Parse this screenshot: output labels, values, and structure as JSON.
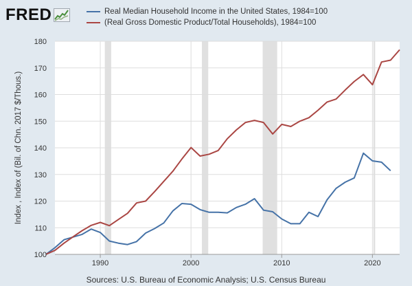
{
  "header": {
    "logo_text": "FRED"
  },
  "footer": {
    "sources": "Sources: U.S. Bureau of Economic Analysis; U.S. Census Bureau"
  },
  "colors": {
    "background": "#e1e9f0",
    "plot_background": "#ffffff",
    "recession": "#e0e0e0",
    "grid": "#dddddd"
  },
  "chart_data": {
    "type": "line",
    "title": "",
    "xlabel": "",
    "ylabel": "Index , Index of (Bil. of Chn. 2017 $/Thous.)",
    "xlim": [
      1985,
      2023
    ],
    "ylim": [
      100,
      180
    ],
    "x_ticks": [
      1990,
      2000,
      2010,
      2020
    ],
    "y_ticks": [
      100,
      110,
      120,
      130,
      140,
      150,
      160,
      170,
      180
    ],
    "grid": true,
    "legend_position": "top",
    "recessions": [
      [
        1990.5,
        1991.2
      ],
      [
        2001.2,
        2001.9
      ],
      [
        2007.9,
        2009.5
      ],
      [
        2020.1,
        2020.3
      ]
    ],
    "series": [
      {
        "name": "Real Median Household Income in the United States, 1984=100",
        "color": "#4572a7",
        "x": [
          1984,
          1985,
          1986,
          1987,
          1988,
          1989,
          1990,
          1991,
          1992,
          1993,
          1994,
          1995,
          1996,
          1997,
          1998,
          1999,
          2000,
          2001,
          2002,
          2003,
          2004,
          2005,
          2006,
          2007,
          2008,
          2009,
          2010,
          2011,
          2012,
          2013,
          2014,
          2015,
          2016,
          2017,
          2018,
          2019,
          2020,
          2021,
          2022
        ],
        "y": [
          100.0,
          102.5,
          105.5,
          106.5,
          107.5,
          109.5,
          108.2,
          105.0,
          104.2,
          103.7,
          104.8,
          108.0,
          109.7,
          111.8,
          116.3,
          119.1,
          118.8,
          116.8,
          115.8,
          115.8,
          115.6,
          117.6,
          118.8,
          120.9,
          116.6,
          116.0,
          113.3,
          111.5,
          111.5,
          115.8,
          114.2,
          120.5,
          124.8,
          127.1,
          128.7,
          138.0,
          135.1,
          134.6,
          131.4
        ]
      },
      {
        "name": "(Real Gross Domestic Product/Total Households), 1984=100",
        "color": "#aa4643",
        "x": [
          1984,
          1985,
          1986,
          1987,
          1988,
          1989,
          1990,
          1991,
          1992,
          1993,
          1994,
          1995,
          1996,
          1997,
          1998,
          1999,
          2000,
          2001,
          2002,
          2003,
          2004,
          2005,
          2006,
          2007,
          2008,
          2009,
          2010,
          2011,
          2012,
          2013,
          2014,
          2015,
          2016,
          2017,
          2018,
          2019,
          2020,
          2021,
          2022,
          2023
        ],
        "y": [
          100.0,
          101.5,
          104.2,
          106.6,
          108.9,
          110.9,
          112.0,
          110.8,
          113.1,
          115.4,
          119.3,
          120.0,
          123.6,
          127.4,
          131.2,
          135.8,
          140.1,
          136.9,
          137.6,
          139.0,
          143.4,
          146.7,
          149.5,
          150.3,
          149.5,
          145.2,
          148.8,
          148.0,
          150.0,
          151.3,
          154.1,
          157.2,
          158.3,
          161.7,
          164.9,
          167.5,
          163.7,
          172.2,
          172.9,
          176.8
        ]
      }
    ]
  }
}
